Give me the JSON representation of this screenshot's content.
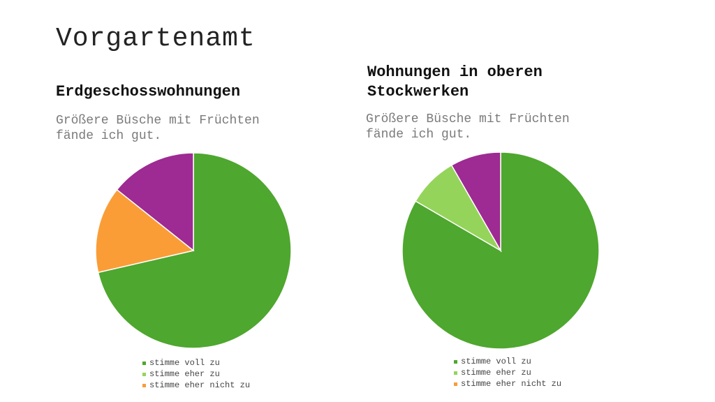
{
  "slide": {
    "title": "Vorgartenamt"
  },
  "colors": {
    "stimme_voll_zu": "#4ea72e",
    "stimme_eher_zu": "#95d45b",
    "stimme_eher_nicht_zu": "#fa9d37",
    "purple_slice": "#9e2a93"
  },
  "chart_data": [
    {
      "type": "pie",
      "title": "Erdgeschosswohnungen",
      "subtitle": "Größere Büsche mit Früchten fände ich gut.",
      "categories": [
        "stimme voll zu",
        "stimme eher nicht zu",
        ""
      ],
      "values": [
        71.4,
        14.3,
        14.3
      ],
      "colors": [
        "#4ea72e",
        "#fa9d37",
        "#9e2a93"
      ],
      "legend": [
        "stimme voll zu",
        "stimme eher zu",
        "stimme eher nicht zu"
      ],
      "legend_colors": [
        "#4ea72e",
        "#95d45b",
        "#fa9d37"
      ],
      "legend_position": "bottom"
    },
    {
      "type": "pie",
      "title": "Wohnungen in oberen Stockwerken",
      "subtitle": "Größere Büsche mit Früchten fände ich gut.",
      "categories": [
        "stimme voll zu",
        "stimme eher zu",
        ""
      ],
      "values": [
        83.3,
        8.3,
        8.3
      ],
      "colors": [
        "#4ea72e",
        "#95d45b",
        "#9e2a93"
      ],
      "legend": [
        "stimme voll zu",
        "stimme eher zu",
        "stimme eher nicht zu"
      ],
      "legend_colors": [
        "#4ea72e",
        "#95d45b",
        "#fa9d37"
      ],
      "legend_position": "bottom"
    }
  ]
}
